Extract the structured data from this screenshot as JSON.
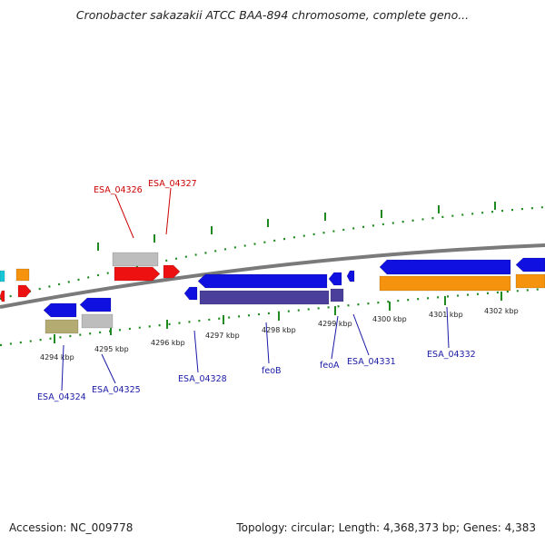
{
  "title": "Cronobacter sakazakii ATCC BAA-894 chromosome, complete geno...",
  "footer": {
    "accession": "Accession: NC_009778",
    "stats": "Topology: circular; Length: 4,368,373 bp; Genes: 4,383"
  },
  "colors": {
    "backbone": "#7a7a7a",
    "tick": "#1f8a1f",
    "label_red": "#cc0000",
    "label_blue": "#1a1aa6",
    "gene_blue": "#1010e0",
    "gene_red": "#ee1111",
    "gene_orange": "#f5930e",
    "gene_gray": "#bdbdbd",
    "gene_khaki": "#b3ab72",
    "gene_purple": "#4a3f9a",
    "gene_cyan": "#18c8d8"
  },
  "ticks": [
    "4294 kbp",
    "4295 kbp",
    "4296 kbp",
    "4297 kbp",
    "4298 kbp",
    "4299 kbp",
    "4300 kbp",
    "4301 kbp",
    "4302 kbp"
  ],
  "gene_labels": [
    {
      "text": "ESA_04326",
      "color": "red"
    },
    {
      "text": "ESA_04327",
      "color": "red"
    },
    {
      "text": "ESA_04324",
      "color": "blue"
    },
    {
      "text": "ESA_04325",
      "color": "blue"
    },
    {
      "text": "ESA_04328",
      "color": "blue"
    },
    {
      "text": "feoB",
      "color": "blue"
    },
    {
      "text": "feoA",
      "color": "blue"
    },
    {
      "text": "ESA_04331",
      "color": "blue"
    },
    {
      "text": "ESA_04332",
      "color": "blue"
    }
  ]
}
